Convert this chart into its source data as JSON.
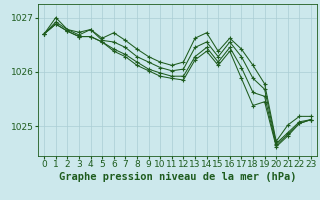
{
  "background_color": "#cce8ec",
  "grid_color": "#aacdd4",
  "line_color": "#1e5c1e",
  "xlabel": "Graphe pression niveau de la mer (hPa)",
  "xlabel_fontsize": 7.5,
  "xlim": [
    -0.5,
    23.5
  ],
  "ylim": [
    1024.45,
    1027.25
  ],
  "yticks": [
    1025,
    1026,
    1027
  ],
  "xticks": [
    0,
    1,
    2,
    3,
    4,
    5,
    6,
    7,
    8,
    9,
    10,
    11,
    12,
    13,
    14,
    15,
    16,
    17,
    18,
    19,
    20,
    21,
    22,
    23
  ],
  "series": [
    [
      1026.7,
      1027.0,
      1026.78,
      1026.73,
      1026.78,
      1026.62,
      1026.72,
      1026.58,
      1026.42,
      1026.28,
      1026.18,
      1026.12,
      1026.18,
      1026.62,
      1026.72,
      1026.38,
      1026.62,
      1026.42,
      1026.12,
      1025.78,
      1024.72,
      1025.02,
      1025.18,
      1025.18
    ],
    [
      1026.7,
      1026.92,
      1026.78,
      1026.68,
      1026.78,
      1026.58,
      1026.55,
      1026.45,
      1026.28,
      1026.18,
      1026.08,
      1026.02,
      1026.05,
      1026.45,
      1026.55,
      1026.28,
      1026.55,
      1026.28,
      1025.88,
      1025.68,
      1024.68,
      1024.88,
      1025.08,
      1025.12
    ],
    [
      1026.7,
      1026.88,
      1026.75,
      1026.65,
      1026.65,
      1026.55,
      1026.42,
      1026.32,
      1026.18,
      1026.05,
      1025.98,
      1025.92,
      1025.92,
      1026.28,
      1026.45,
      1026.18,
      1026.45,
      1026.08,
      1025.62,
      1025.55,
      1024.65,
      1024.85,
      1025.05,
      1025.12
    ],
    [
      1026.7,
      1026.88,
      1026.75,
      1026.65,
      1026.65,
      1026.55,
      1026.38,
      1026.28,
      1026.12,
      1026.02,
      1025.92,
      1025.88,
      1025.85,
      1026.22,
      1026.38,
      1026.12,
      1026.38,
      1025.88,
      1025.38,
      1025.45,
      1024.62,
      1024.82,
      1025.05,
      1025.12
    ]
  ],
  "tick_fontsize": 6.5,
  "tick_color": "#1e5c1e",
  "axis_color": "#1e5c1e",
  "linewidth": 0.75,
  "markersize": 3.5,
  "markeredgewidth": 0.8
}
